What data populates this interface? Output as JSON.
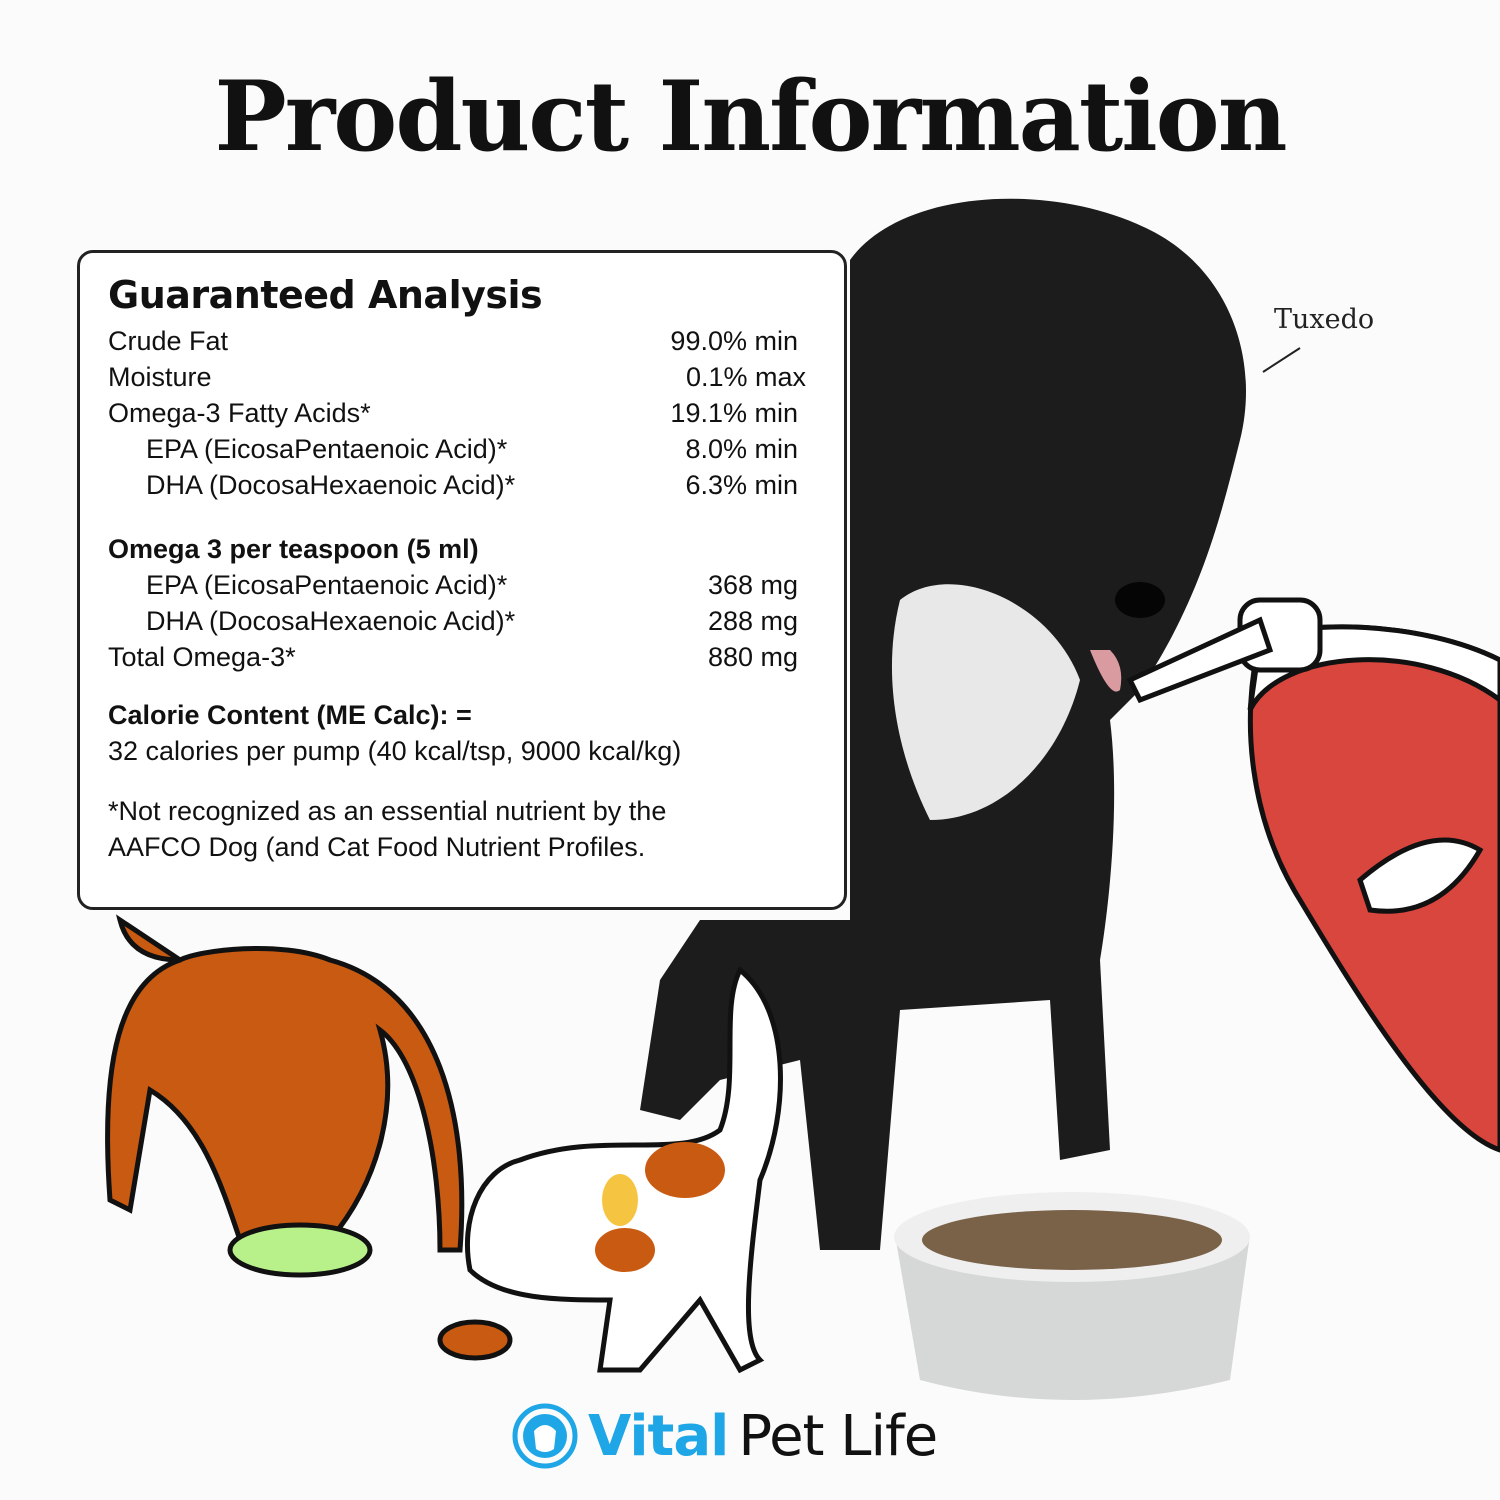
{
  "title": "Product Information",
  "annotation": "Tuxedo",
  "guaranteed_analysis": {
    "heading": "Guaranteed Analysis",
    "rows": [
      {
        "label": "Crude Fat",
        "value": "99.0% min"
      },
      {
        "label": "Moisture",
        "value": "0.1% max"
      },
      {
        "label": "Omega-3 Fatty Acids*",
        "value": "19.1% min"
      },
      {
        "label": "EPA (EicosaPentaenoic Acid)*",
        "value": "8.0% min"
      },
      {
        "label": "DHA (DocosaHexaenoic Acid)*",
        "value": "6.3% min"
      }
    ]
  },
  "per_teaspoon": {
    "heading": "Omega 3 per teaspoon (5 ml)",
    "rows": [
      {
        "label": "EPA (EicosaPentaenoic Acid)*",
        "value": "368 mg"
      },
      {
        "label": "DHA (DocosaHexaenoic Acid)*",
        "value": "288 mg"
      },
      {
        "label": "Total Omega-3*",
        "value": "880 mg"
      }
    ]
  },
  "calorie": {
    "heading": "Calorie Content (ME Calc): =",
    "text": "32 calories per pump (40 kcal/tsp, 9000 kcal/kg)"
  },
  "footnote": {
    "line1": "*Not recognized as an essential nutrient by the",
    "line2": "AAFCO Dog (and Cat Food Nutrient Profiles."
  },
  "brand": {
    "part1": "Vital",
    "part2": "Pet Life",
    "color": "#1ea6e6"
  },
  "colors": {
    "bottle": "#d9463e",
    "orange_dog": "#c95a12",
    "bowl_green": "#b8f08a"
  }
}
